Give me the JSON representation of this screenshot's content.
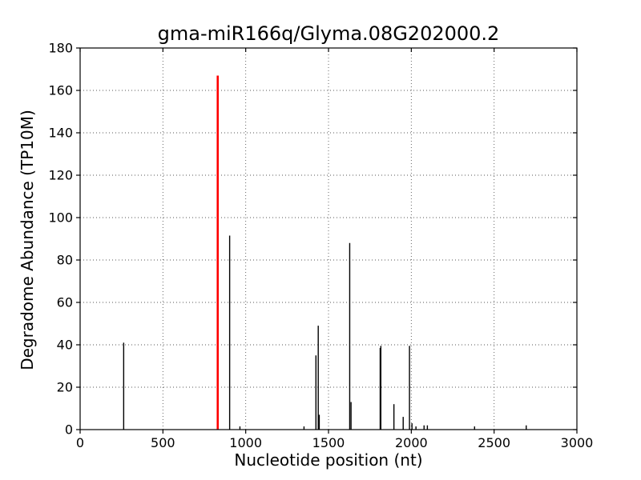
{
  "chart_data": {
    "type": "bar",
    "subtype": "stem-spikes",
    "title": "gma-miR166q/Glyma.08G202000.2",
    "xlabel": "Nucleotide position (nt)",
    "ylabel": "Degradome Abundance (TP10M)",
    "xlim": [
      0,
      3000
    ],
    "ylim": [
      0,
      180
    ],
    "xticks": [
      0,
      500,
      1000,
      1500,
      2000,
      2500,
      3000
    ],
    "yticks": [
      0,
      20,
      40,
      60,
      80,
      100,
      120,
      140,
      160,
      180
    ],
    "grid": "dotted both axes",
    "legend": "none",
    "colors": {
      "spike_default": "#000000",
      "spike_highlight": "#ff0000",
      "axis": "#000000",
      "grid": "#555555",
      "background": "#ffffff"
    },
    "points": [
      {
        "x": 263,
        "y": 41
      },
      {
        "x": 831,
        "y": 167,
        "color": "highlight"
      },
      {
        "x": 903,
        "y": 91.5
      },
      {
        "x": 965,
        "y": 1.5
      },
      {
        "x": 1352,
        "y": 1.5
      },
      {
        "x": 1424,
        "y": 35
      },
      {
        "x": 1438,
        "y": 49
      },
      {
        "x": 1444,
        "y": 7
      },
      {
        "x": 1628,
        "y": 88
      },
      {
        "x": 1636,
        "y": 13
      },
      {
        "x": 1812,
        "y": 38.5
      },
      {
        "x": 1816,
        "y": 39.5
      },
      {
        "x": 1895,
        "y": 12
      },
      {
        "x": 1951,
        "y": 6
      },
      {
        "x": 1989,
        "y": 39.5
      },
      {
        "x": 2004,
        "y": 3
      },
      {
        "x": 2028,
        "y": 1.5
      },
      {
        "x": 2077,
        "y": 2
      },
      {
        "x": 2097,
        "y": 2
      },
      {
        "x": 2382,
        "y": 1.5
      },
      {
        "x": 2694,
        "y": 2
      }
    ]
  }
}
